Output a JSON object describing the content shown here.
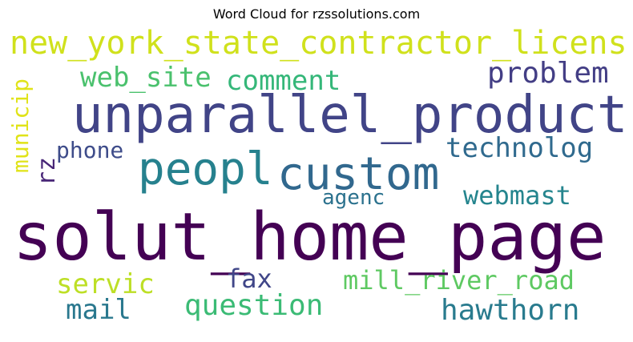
{
  "title": "Word Cloud for rzssolutions.com",
  "colors": {
    "background": "#ffffff",
    "dark_purple": "#440154",
    "indigo": "#3b3f87",
    "blue": "#2f6b8e",
    "teal": "#21918c",
    "green": "#35b779",
    "light_green": "#55c667",
    "yellow": "#b8de29",
    "bright_yellow": "#d7e219"
  },
  "words": [
    {
      "text": "new_york_state_contractor_licens",
      "color": "#d0e11c"
    },
    {
      "text": "web_site",
      "color": "#4ac16d"
    },
    {
      "text": "comment",
      "color": "#35b779"
    },
    {
      "text": "problem",
      "color": "#433e85"
    },
    {
      "text": "municip",
      "color": "#e0e318"
    },
    {
      "text": "unparallel_product",
      "color": "#414487"
    },
    {
      "text": "phone",
      "color": "#3e4c8a"
    },
    {
      "text": "technolog",
      "color": "#306a8e"
    },
    {
      "text": "rz",
      "color": "#482677"
    },
    {
      "text": "peopl",
      "color": "#26818e"
    },
    {
      "text": "custom",
      "color": "#31688e"
    },
    {
      "text": "agenc",
      "color": "#2c728e"
    },
    {
      "text": "webmast",
      "color": "#25858e"
    },
    {
      "text": "solut_home_page",
      "color": "#440154"
    },
    {
      "text": "servic",
      "color": "#bddf26"
    },
    {
      "text": "fax",
      "color": "#404688"
    },
    {
      "text": "mill_river_road",
      "color": "#5ec962"
    },
    {
      "text": "mail",
      "color": "#2a788e"
    },
    {
      "text": "question",
      "color": "#3bbb75"
    },
    {
      "text": "hawthorn",
      "color": "#297b8e"
    }
  ]
}
